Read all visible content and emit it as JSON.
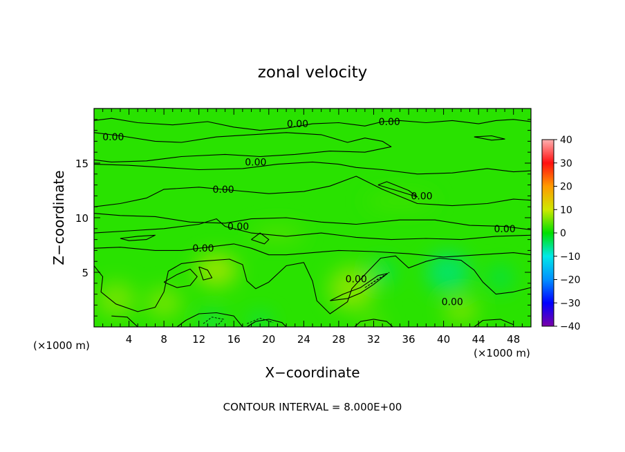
{
  "chart_data": {
    "type": "heatmap",
    "title": "zonal velocity",
    "xlabel": "X−coordinate",
    "ylabel": "Z−coordinate",
    "x_unit_left": "(×1000 m)",
    "x_unit_right": "(×1000 m)",
    "footer": "CONTOUR INTERVAL = 8.000E+00",
    "xlim": [
      0,
      50
    ],
    "ylim": [
      0,
      20
    ],
    "x_ticks": [
      4,
      8,
      12,
      16,
      20,
      24,
      28,
      32,
      36,
      40,
      44,
      48
    ],
    "y_ticks": [
      5,
      10,
      15
    ],
    "colorbar": {
      "range": [
        -40,
        40
      ],
      "ticks": [
        40,
        30,
        20,
        10,
        0,
        -10,
        -20,
        -30,
        -40
      ],
      "tick_labels": [
        "40",
        "30",
        "20",
        "10",
        "0",
        "−10",
        "−20",
        "−30",
        "−40"
      ],
      "colors": [
        "#7a00a8",
        "#0000ff",
        "#0090ff",
        "#00e8e8",
        "#00e000",
        "#cfe800",
        "#ff9a00",
        "#ff1010",
        "#ffb0b0"
      ]
    },
    "background_value": 2,
    "blobs": [
      {
        "x": 14,
        "z": 5.2,
        "rx": 2.4,
        "rz": 1.5,
        "v": 8
      },
      {
        "x": 2.5,
        "z": 2.5,
        "rx": 2.2,
        "rz": 1.6,
        "v": 6
      },
      {
        "x": 8,
        "z": 2.2,
        "rx": 2.0,
        "rz": 1.4,
        "v": 6
      },
      {
        "x": 29.5,
        "z": 3.5,
        "rx": 2.6,
        "rz": 2.0,
        "v": 7
      },
      {
        "x": 42,
        "z": 1.5,
        "rx": 2.0,
        "rz": 1.2,
        "v": 6
      },
      {
        "x": 40.5,
        "z": 5.0,
        "rx": 2.5,
        "rz": 1.8,
        "v": -5
      },
      {
        "x": 33,
        "z": 5.0,
        "rx": 1.5,
        "rz": 1.0,
        "v": -4
      },
      {
        "x": 46.5,
        "z": 4.5,
        "rx": 1.5,
        "rz": 1.2,
        "v": -3
      },
      {
        "x": 13.5,
        "z": 0.6,
        "rx": 1.4,
        "rz": 0.6,
        "v": -5
      },
      {
        "x": 19.0,
        "z": 0.6,
        "rx": 1.4,
        "rz": 0.6,
        "v": -4
      },
      {
        "x": 32.0,
        "z": 0.4,
        "rx": 1.4,
        "rz": 0.6,
        "v": 5
      },
      {
        "x": 21,
        "z": 8.5,
        "rx": 3.0,
        "rz": 0.8,
        "v": 4
      },
      {
        "x": 35,
        "z": 11.5,
        "rx": 4.0,
        "rz": 0.8,
        "v": 3
      }
    ],
    "contours": [
      {
        "points": [
          [
            0,
            18.9
          ],
          [
            2,
            19.1
          ],
          [
            5,
            18.7
          ],
          [
            9,
            18.5
          ],
          [
            13,
            18.8
          ],
          [
            16,
            18.3
          ],
          [
            19,
            18.0
          ],
          [
            22,
            18.2
          ],
          [
            25,
            18.6
          ],
          [
            28,
            18.7
          ],
          [
            31,
            18.4
          ],
          [
            33,
            18.8
          ],
          [
            35,
            18.9
          ],
          [
            38,
            18.7
          ],
          [
            41,
            18.9
          ],
          [
            44,
            18.6
          ],
          [
            46,
            18.9
          ],
          [
            48,
            19.0
          ],
          [
            50,
            18.8
          ]
        ]
      },
      {
        "points": [
          [
            0,
            17.8
          ],
          [
            3,
            17.5
          ],
          [
            7,
            17.0
          ],
          [
            10,
            16.9
          ],
          [
            14,
            17.4
          ],
          [
            18,
            17.6
          ],
          [
            22,
            17.8
          ],
          [
            26,
            17.6
          ],
          [
            29,
            16.9
          ],
          [
            31,
            17.3
          ],
          [
            33,
            17.0
          ],
          [
            34,
            16.5
          ],
          [
            31,
            16.0
          ],
          [
            27,
            16.1
          ],
          [
            23,
            15.8
          ],
          [
            19,
            15.6
          ],
          [
            15,
            15.8
          ],
          [
            10,
            15.6
          ],
          [
            6,
            15.2
          ],
          [
            2,
            15.1
          ],
          [
            0,
            15.3
          ]
        ]
      },
      {
        "points": [
          [
            0,
            14.9
          ],
          [
            4,
            14.8
          ],
          [
            8,
            14.6
          ],
          [
            12,
            14.4
          ],
          [
            17,
            14.5
          ],
          [
            21,
            14.9
          ],
          [
            25,
            15.1
          ],
          [
            28,
            14.9
          ],
          [
            30,
            14.6
          ],
          [
            33,
            14.4
          ],
          [
            37,
            14.0
          ],
          [
            41,
            14.1
          ],
          [
            45,
            14.5
          ],
          [
            48,
            14.2
          ],
          [
            50,
            14.3
          ]
        ]
      },
      {
        "points": [
          [
            0,
            11.0
          ],
          [
            3,
            11.3
          ],
          [
            6,
            11.8
          ],
          [
            8,
            12.6
          ],
          [
            12,
            12.8
          ],
          [
            16,
            12.5
          ],
          [
            20,
            12.2
          ],
          [
            24,
            12.4
          ],
          [
            27,
            12.9
          ],
          [
            30,
            13.8
          ],
          [
            33,
            12.6
          ],
          [
            37,
            11.3
          ],
          [
            41,
            11.1
          ],
          [
            45,
            11.3
          ],
          [
            48,
            11.7
          ],
          [
            50,
            11.6
          ]
        ]
      },
      {
        "points": [
          [
            0,
            10.4
          ],
          [
            3,
            10.2
          ],
          [
            7,
            10.1
          ],
          [
            11,
            9.6
          ],
          [
            15,
            9.5
          ],
          [
            18,
            9.9
          ],
          [
            22,
            10.0
          ],
          [
            26,
            9.6
          ],
          [
            30,
            9.4
          ],
          [
            35,
            9.8
          ],
          [
            39,
            9.8
          ],
          [
            43,
            9.3
          ],
          [
            47,
            9.2
          ],
          [
            50,
            8.9
          ]
        ]
      },
      {
        "points": [
          [
            0,
            8.6
          ],
          [
            4,
            8.8
          ],
          [
            8,
            9.0
          ],
          [
            12,
            9.4
          ],
          [
            14,
            9.9
          ],
          [
            15,
            9.2
          ],
          [
            18,
            8.6
          ],
          [
            22,
            8.3
          ],
          [
            26,
            8.6
          ],
          [
            30,
            8.2
          ],
          [
            34,
            8.0
          ],
          [
            38,
            8.1
          ],
          [
            42,
            8.0
          ],
          [
            46,
            8.3
          ],
          [
            50,
            8.4
          ]
        ]
      },
      {
        "points": [
          [
            0,
            7.2
          ],
          [
            3,
            7.3
          ],
          [
            7,
            7.0
          ],
          [
            10,
            7.0
          ],
          [
            13,
            7.3
          ],
          [
            16,
            7.6
          ],
          [
            18,
            7.2
          ],
          [
            20,
            6.6
          ],
          [
            22,
            6.6
          ],
          [
            25,
            6.8
          ],
          [
            28,
            7.0
          ],
          [
            32,
            6.9
          ],
          [
            36,
            6.7
          ],
          [
            40,
            6.4
          ],
          [
            44,
            6.6
          ],
          [
            48,
            6.8
          ],
          [
            50,
            6.6
          ]
        ]
      },
      {
        "points": [
          [
            0,
            5.6
          ],
          [
            1,
            4.6
          ],
          [
            0.8,
            3.2
          ],
          [
            2.5,
            2.1
          ],
          [
            5,
            1.4
          ],
          [
            7,
            1.8
          ],
          [
            8,
            3.2
          ],
          [
            8.5,
            5.1
          ],
          [
            10,
            5.8
          ],
          [
            12,
            6.0
          ],
          [
            15.5,
            6.2
          ],
          [
            17,
            5.7
          ],
          [
            17.5,
            4.2
          ],
          [
            18.5,
            3.5
          ],
          [
            20,
            4.1
          ],
          [
            22,
            5.6
          ],
          [
            24,
            5.9
          ],
          [
            25,
            4.2
          ],
          [
            25.5,
            2.4
          ],
          [
            27,
            1.2
          ],
          [
            29,
            2.3
          ],
          [
            29.5,
            3.5
          ],
          [
            31,
            4.8
          ],
          [
            32.8,
            6.3
          ],
          [
            34.5,
            6.5
          ],
          [
            36,
            5.4
          ],
          [
            38,
            6.0
          ],
          [
            39.5,
            6.3
          ],
          [
            42,
            6.1
          ],
          [
            43.5,
            5.2
          ],
          [
            44.5,
            4.1
          ],
          [
            46,
            3.0
          ],
          [
            48,
            3.2
          ],
          [
            50,
            3.6
          ]
        ]
      },
      {
        "points": [
          [
            8,
            4.1
          ],
          [
            9.5,
            4.8
          ],
          [
            11,
            5.3
          ],
          [
            11.8,
            4.6
          ],
          [
            11,
            3.8
          ],
          [
            9.5,
            3.6
          ],
          [
            8,
            4.1
          ]
        ]
      },
      {
        "points": [
          [
            27,
            2.4
          ],
          [
            29,
            2.6
          ],
          [
            30.5,
            3.1
          ],
          [
            32,
            3.9
          ],
          [
            33.6,
            4.9
          ],
          [
            32.5,
            4.7
          ],
          [
            30.5,
            3.6
          ],
          [
            28.5,
            3.0
          ],
          [
            27,
            2.4
          ]
        ]
      },
      {
        "points": [
          [
            3,
            8.1
          ],
          [
            5,
            8.3
          ],
          [
            7,
            8.4
          ],
          [
            6,
            8.0
          ],
          [
            4,
            7.9
          ],
          [
            3,
            8.1
          ]
        ]
      },
      {
        "points": [
          [
            18.0,
            8.0
          ],
          [
            19,
            8.6
          ],
          [
            20,
            8.0
          ],
          [
            19.5,
            7.6
          ],
          [
            18.0,
            8.0
          ]
        ]
      },
      {
        "points": [
          [
            32.5,
            13.0
          ],
          [
            35,
            12.4
          ],
          [
            37,
            11.9
          ],
          [
            36,
            12.5
          ],
          [
            33.5,
            13.3
          ],
          [
            32.5,
            13.0
          ]
        ]
      },
      {
        "points": [
          [
            43.5,
            17.4
          ],
          [
            45.5,
            17.1
          ],
          [
            47,
            17.2
          ],
          [
            45.5,
            17.5
          ],
          [
            43.5,
            17.4
          ]
        ]
      },
      {
        "points": [
          [
            2,
            1.0
          ],
          [
            3.8,
            0.9
          ],
          [
            5,
            0.0
          ]
        ]
      },
      {
        "points": [
          [
            9.5,
            0.0
          ],
          [
            10.5,
            0.6
          ],
          [
            12,
            1.2
          ],
          [
            14,
            1.3
          ],
          [
            16,
            1.0
          ],
          [
            17,
            0.0
          ]
        ]
      },
      {
        "points": [
          [
            17.5,
            0.0
          ],
          [
            18.5,
            0.5
          ],
          [
            20,
            0.7
          ],
          [
            21.5,
            0.4
          ],
          [
            22,
            0.0
          ]
        ]
      },
      {
        "points": [
          [
            29.8,
            0.0
          ],
          [
            30.5,
            0.5
          ],
          [
            32,
            0.7
          ],
          [
            33.5,
            0.5
          ],
          [
            34.2,
            0.0
          ]
        ]
      },
      {
        "points": [
          [
            43.5,
            0.0
          ],
          [
            44.5,
            0.6
          ],
          [
            46.5,
            0.7
          ],
          [
            48,
            0.2
          ]
        ]
      },
      {
        "points": [
          [
            12,
            5.5
          ],
          [
            13,
            5.2
          ],
          [
            13.5,
            4.5
          ],
          [
            12.5,
            4.3
          ],
          [
            12,
            5.5
          ]
        ]
      }
    ],
    "dashed_contours": [
      {
        "points": [
          [
            31.0,
            3.6
          ],
          [
            32.5,
            4.4
          ],
          [
            33.8,
            5.0
          ],
          [
            32.8,
            4.5
          ],
          [
            31.0,
            3.6
          ]
        ]
      },
      {
        "points": [
          [
            12.5,
            0.3
          ],
          [
            13.5,
            0.9
          ],
          [
            14.8,
            0.7
          ],
          [
            14.2,
            0.2
          ]
        ]
      },
      {
        "points": [
          [
            17.5,
            0.3
          ],
          [
            19,
            0.8
          ],
          [
            20.5,
            0.4
          ]
        ]
      }
    ],
    "contour_labels": [
      {
        "text": "0.00",
        "x": 2.2,
        "z": 17.4
      },
      {
        "text": "0.00",
        "x": 23.3,
        "z": 18.6
      },
      {
        "text": "0.00",
        "x": 33.8,
        "z": 18.8
      },
      {
        "text": "0.00",
        "x": 18.5,
        "z": 15.1
      },
      {
        "text": "0.00",
        "x": 14.8,
        "z": 12.6
      },
      {
        "text": "0.00",
        "x": 37.5,
        "z": 12.0
      },
      {
        "text": "0.00",
        "x": 16.5,
        "z": 9.2
      },
      {
        "text": "0.00",
        "x": 47.0,
        "z": 9.0
      },
      {
        "text": "0.00",
        "x": 12.5,
        "z": 7.2
      },
      {
        "text": "0.00",
        "x": 30.0,
        "z": 4.4
      },
      {
        "text": "0.00",
        "x": 41.0,
        "z": 2.3
      }
    ]
  }
}
